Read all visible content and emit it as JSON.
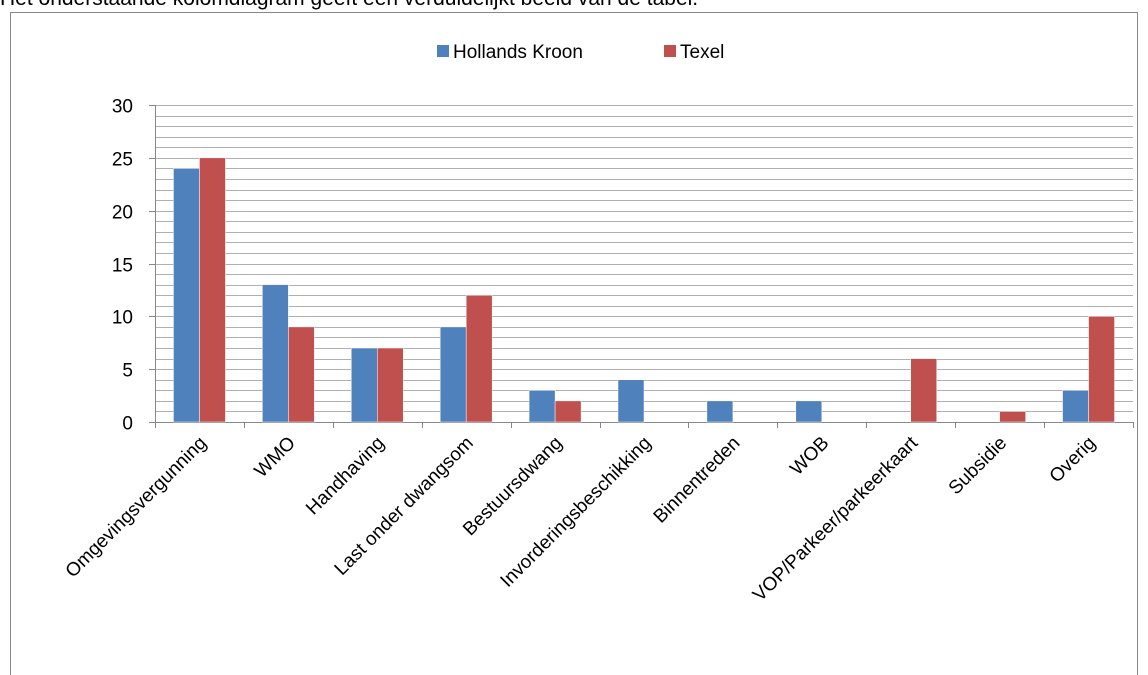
{
  "intro": "Het onderstaande kolomdiagram geeft een verduidelijkt beeld van de tabel.",
  "chart_data": {
    "type": "bar",
    "categories": [
      "Omgevingsvergunning",
      "WMO",
      "Handhaving",
      "Last onder dwangsom",
      "Bestuursdwang",
      "Invorderingsbeschikking",
      "Binnentreden",
      "WOB",
      "VOP/Parkeer/parkeerkaart",
      "Subsidie",
      "Overig"
    ],
    "series": [
      {
        "name": "Hollands Kroon",
        "color": "#4f81bd",
        "values": [
          24,
          13,
          7,
          9,
          3,
          4,
          2,
          2,
          0,
          0,
          3
        ]
      },
      {
        "name": "Texel",
        "color": "#c0504d",
        "values": [
          25,
          9,
          7,
          12,
          2,
          0,
          0,
          0,
          6,
          1,
          10
        ]
      }
    ],
    "ylim": [
      0,
      30
    ],
    "yticks": [
      0,
      5,
      10,
      15,
      20,
      25,
      30
    ],
    "grid_lines": [
      1,
      2,
      3,
      4,
      5,
      6,
      7,
      8,
      9,
      10,
      11,
      12,
      13,
      14,
      15,
      16,
      17,
      18,
      19,
      20,
      21,
      22,
      23,
      24,
      25,
      26,
      27,
      28,
      29,
      30
    ],
    "legend": "top"
  }
}
